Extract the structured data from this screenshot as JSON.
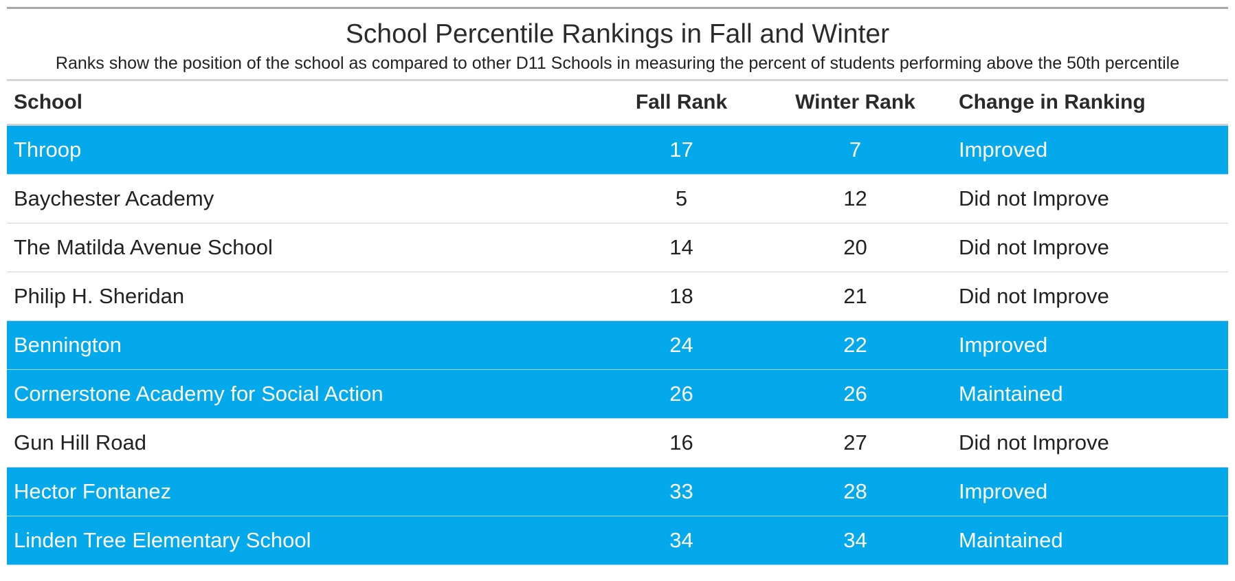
{
  "chart_data": {
    "type": "table",
    "title": "School Percentile Rankings in Fall and Winter",
    "subtitle": "Ranks show the position of the school as compared to other D11 Schools in measuring the percent of students performing above the 50th percentile",
    "columns": [
      "School",
      "Fall Rank",
      "Winter Rank",
      "Change in Ranking"
    ],
    "highlight_color": "#03a9ea",
    "highlight_rule": "Improved or Maintained",
    "rows": [
      {
        "school": "Throop",
        "fall": 17,
        "winter": 7,
        "change": "Improved"
      },
      {
        "school": "Baychester Academy",
        "fall": 5,
        "winter": 12,
        "change": "Did not Improve"
      },
      {
        "school": "The Matilda Avenue School",
        "fall": 14,
        "winter": 20,
        "change": "Did not Improve"
      },
      {
        "school": "Philip H. Sheridan",
        "fall": 18,
        "winter": 21,
        "change": "Did not Improve"
      },
      {
        "school": "Bennington",
        "fall": 24,
        "winter": 22,
        "change": "Improved"
      },
      {
        "school": "Cornerstone Academy for Social Action",
        "fall": 26,
        "winter": 26,
        "change": "Maintained"
      },
      {
        "school": "Gun Hill Road",
        "fall": 16,
        "winter": 27,
        "change": "Did not Improve"
      },
      {
        "school": "Hector Fontanez",
        "fall": 33,
        "winter": 28,
        "change": "Improved"
      },
      {
        "school": "Linden Tree Elementary School",
        "fall": 34,
        "winter": 34,
        "change": "Maintained"
      }
    ]
  }
}
